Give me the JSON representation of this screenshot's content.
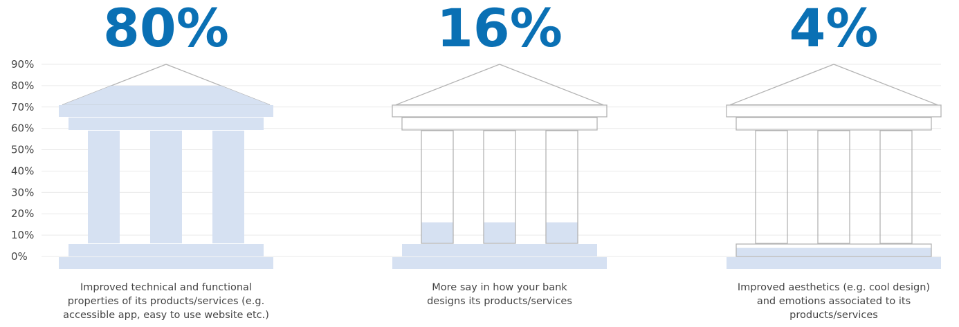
{
  "chart_data": {
    "type": "bar",
    "categories": [
      "Improved technical and functional properties of its products/services (e.g. accessible app, easy to use website etc.)",
      "More say in how your bank designs its products/services",
      "Improved aesthetics (e.g. cool design) and emotions associated to its products/services"
    ],
    "category_lines": [
      [
        "Improved technical and functional",
        "properties of its products/services (e.g.",
        "accessible app, easy to use website etc.)"
      ],
      [
        "More say in how your bank",
        "designs its products/services"
      ],
      [
        "Improved aesthetics (e.g. cool design)",
        "and emotions associated to its",
        "products/services"
      ]
    ],
    "values": [
      80,
      16,
      4
    ],
    "value_labels": [
      "80%",
      "16%",
      "4%"
    ],
    "y_ticks": [
      "0%",
      "10%",
      "20%",
      "30%",
      "40%",
      "50%",
      "60%",
      "70%",
      "80%",
      "90%"
    ],
    "ylim": [
      0,
      90
    ],
    "grid": true,
    "colors": {
      "fill": "#d6e1f2",
      "outline": "#b3b3b3",
      "value_label": "#0a70b4",
      "text": "#444444",
      "grid": "#e9e9e9"
    }
  }
}
